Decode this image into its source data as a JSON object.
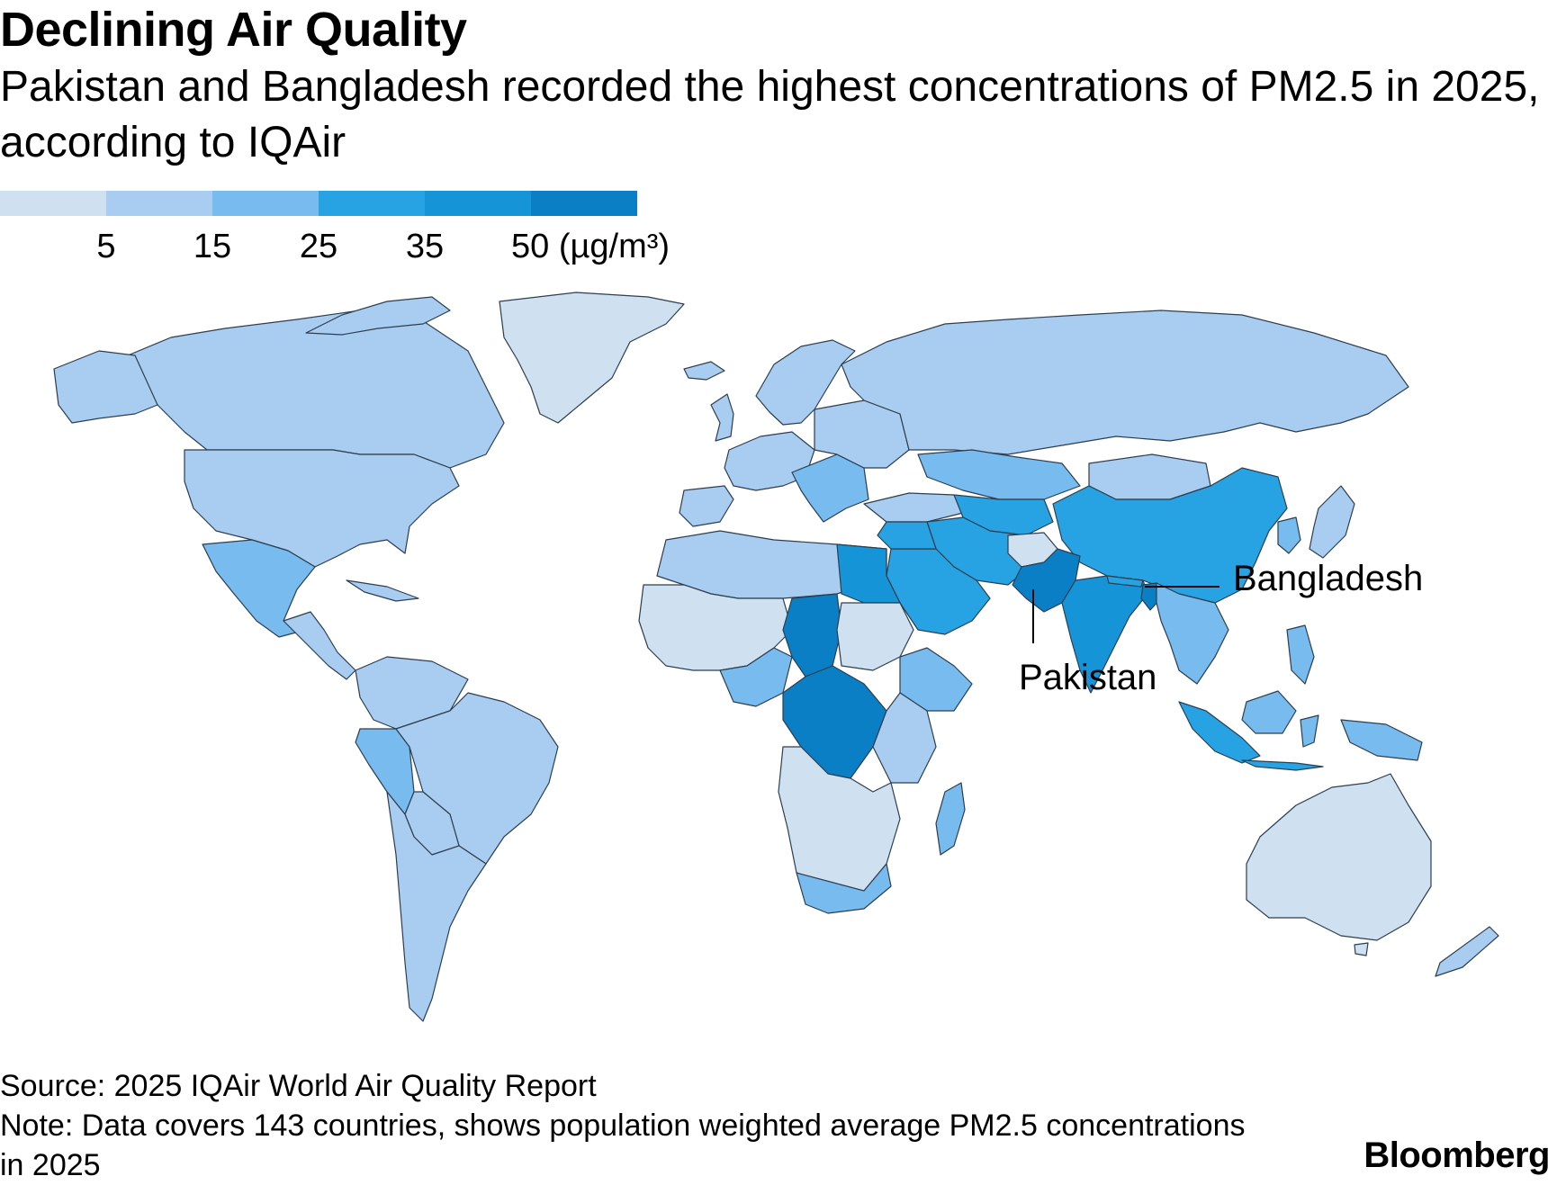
{
  "title": "Declining Air Quality",
  "subtitle": "Pakistan and Bangladesh recorded the highest concentrations of PM2.5 in 2025, according to IQAir",
  "legend": {
    "colors": [
      "#cfe0f1",
      "#a9cdf1",
      "#78bbee",
      "#27a3e3",
      "#1694d8",
      "#0a7fc6"
    ],
    "ticks": [
      "5",
      "15",
      "25",
      "35",
      "50 (µg/m³)"
    ]
  },
  "chart_data": {
    "type": "choropleth",
    "metric": "population weighted average PM2.5 concentration (µg/m³)",
    "bins": [
      {
        "range": "< 5",
        "color": "#cfe0f1"
      },
      {
        "range": "5–15",
        "color": "#a9cdf1"
      },
      {
        "range": "15–25",
        "color": "#78bbee"
      },
      {
        "range": "25–35",
        "color": "#27a3e3"
      },
      {
        "range": "35–50",
        "color": "#1694d8"
      },
      {
        "range": "> 50",
        "color": "#0a7fc6"
      }
    ],
    "annotated_regions": [
      "Pakistan",
      "Bangladesh"
    ]
  },
  "annotations": {
    "bangladesh": "Bangladesh",
    "pakistan": "Pakistan"
  },
  "source": "Source: 2025 IQAir World Air Quality Report",
  "note": "Note: Data covers 143 countries, shows population weighted average PM2.5 concentrations in 2025",
  "brand": "Bloomberg"
}
